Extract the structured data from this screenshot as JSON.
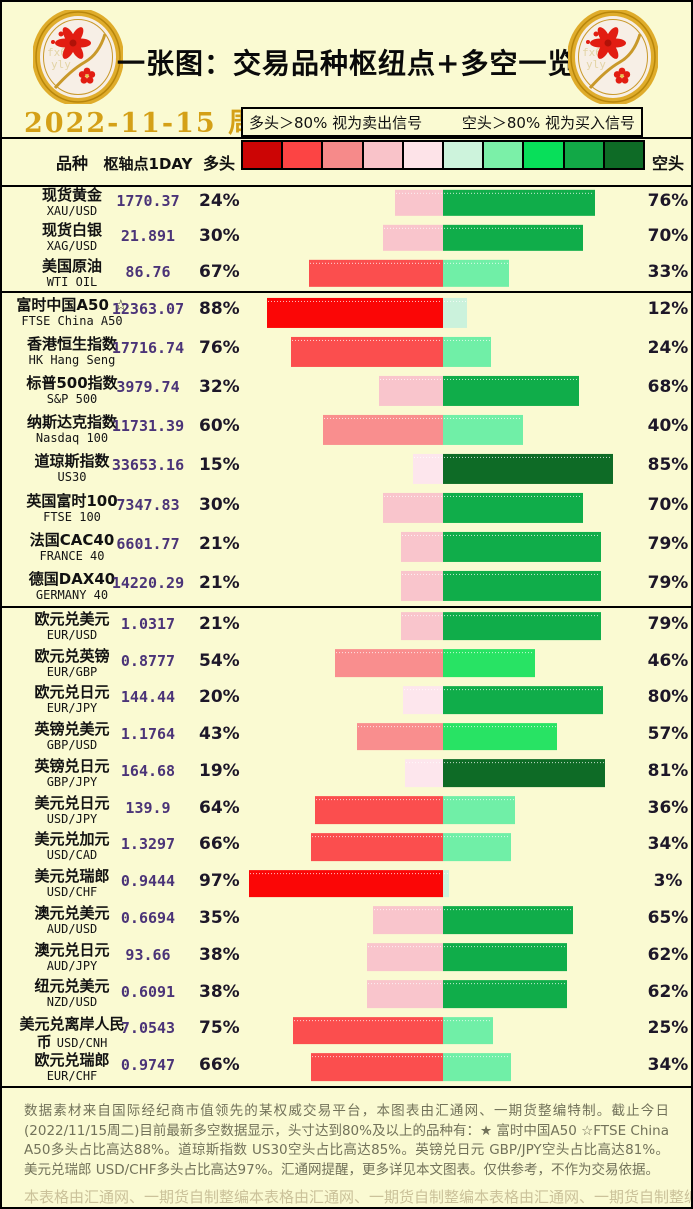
{
  "title": "一张图：交易品种枢纽点+多空一览",
  "date": "2022-11-15 周二",
  "legend": {
    "long_rule": "多头＞80% 视为卖出信号",
    "short_rule": "空头＞80% 视为买入信号"
  },
  "headers": {
    "instrument": "品种",
    "pivot": "枢轴点1DAY",
    "long": "多头",
    "short": "空头"
  },
  "color_scale": [
    "#CC0505",
    "#FC4444",
    "#F68A8A",
    "#F9C3C9",
    "#FDE3E8",
    "#CDF3DC",
    "#7BF0A8",
    "#08DF5A",
    "#12A847",
    "#0E6B26"
  ],
  "colors": {
    "background": "#FAFAD2",
    "border": "#000000",
    "pivot_text": "#4B3478",
    "date_text": "#D4A017",
    "footer_text": "#72725A",
    "watermark_text": "#CBC29A",
    "long_buckets": [
      "#FDE6ED",
      "#F9C5CC",
      "#F98E8E",
      "#FB4E4E",
      "#FB0606"
    ],
    "short_buckets": [
      "#CBF2DC",
      "#70EFA7",
      "#28E364",
      "#10AD4A",
      "#0E6B26"
    ]
  },
  "sections": [
    {
      "name": "commodities",
      "rows": [
        {
          "name": "现货黄金",
          "symbol": "XAU/USD",
          "pivot": "1770.37",
          "long": 24,
          "short": 76
        },
        {
          "name": "现货白银",
          "symbol": "XAG/USD",
          "pivot": "21.891",
          "long": 30,
          "short": 70
        },
        {
          "name": "美国原油",
          "symbol": "WTI OIL",
          "pivot": "86.76",
          "long": 67,
          "short": 33
        }
      ]
    },
    {
      "name": "indices",
      "rows": [
        {
          "name": "富时中国A50 ☆",
          "symbol": "FTSE China A50",
          "pivot": "12363.07",
          "long": 88,
          "short": 12
        },
        {
          "name": "香港恒生指数",
          "symbol": "HK Hang Seng",
          "pivot": "17716.74",
          "long": 76,
          "short": 24
        },
        {
          "name": "标普500指数",
          "symbol": "S&P 500",
          "pivot": "3979.74",
          "long": 32,
          "short": 68
        },
        {
          "name": "纳斯达克指数",
          "symbol": "Nasdaq 100",
          "pivot": "11731.39",
          "long": 60,
          "short": 40
        },
        {
          "name": "道琼斯指数",
          "symbol": "US30",
          "pivot": "33653.16",
          "long": 15,
          "short": 85
        },
        {
          "name": "英国富时100",
          "symbol": "FTSE 100",
          "pivot": "7347.83",
          "long": 30,
          "short": 70
        },
        {
          "name": "法国CAC40",
          "symbol": "FRANCE 40",
          "pivot": "6601.77",
          "long": 21,
          "short": 79
        },
        {
          "name": "德国DAX40",
          "symbol": "GERMANY 40",
          "pivot": "14220.29",
          "long": 21,
          "short": 79
        }
      ]
    },
    {
      "name": "forex",
      "rows": [
        {
          "name": "欧元兑美元",
          "symbol": "EUR/USD",
          "pivot": "1.0317",
          "long": 21,
          "short": 79
        },
        {
          "name": "欧元兑英镑",
          "symbol": "EUR/GBP",
          "pivot": "0.8777",
          "long": 54,
          "short": 46
        },
        {
          "name": "欧元兑日元",
          "symbol": "EUR/JPY",
          "pivot": "144.44",
          "long": 20,
          "short": 80
        },
        {
          "name": "英镑兑美元",
          "symbol": "GBP/USD",
          "pivot": "1.1764",
          "long": 43,
          "short": 57
        },
        {
          "name": "英镑兑日元",
          "symbol": "GBP/JPY",
          "pivot": "164.68",
          "long": 19,
          "short": 81
        },
        {
          "name": "美元兑日元",
          "symbol": "USD/JPY",
          "pivot": "139.9",
          "long": 64,
          "short": 36
        },
        {
          "name": "美元兑加元",
          "symbol": "USD/CAD",
          "pivot": "1.3297",
          "long": 66,
          "short": 34
        },
        {
          "name": "美元兑瑞郎",
          "symbol": "USD/CHF",
          "pivot": "0.9444",
          "long": 97,
          "short": 3
        },
        {
          "name": "澳元兑美元",
          "symbol": "AUD/USD",
          "pivot": "0.6694",
          "long": 35,
          "short": 65
        },
        {
          "name": "澳元兑日元",
          "symbol": "AUD/JPY",
          "pivot": "93.66",
          "long": 38,
          "short": 62
        },
        {
          "name": "纽元兑美元",
          "symbol": "NZD/USD",
          "pivot": "0.6091",
          "long": 38,
          "short": 62
        },
        {
          "name": "美元兑离岸人民币",
          "symbol": "USD/CNH",
          "pivot": "7.0543",
          "long": 75,
          "short": 25
        },
        {
          "name": "欧元兑瑞郎",
          "symbol": "EUR/CHF",
          "pivot": "0.9747",
          "long": 66,
          "short": 34
        }
      ]
    }
  ],
  "footer": {
    "note": "数据素材来自国际经纪商市值领先的某权威交易平台，本图表由汇通网、一期货整编特制。截止今日(2022/11/15周二)目前最新多空数据显示，头寸达到80%及以上的品种有：★ 富时中国A50 ☆FTSE China A50多头占比高达88%。道琼斯指数 US30空头占比高达85%。英镑兑日元 GBP/JPY空头占比高达81%。美元兑瑞郎 USD/CHF多头占比高达97%。汇通网提醒，更多详见本文图表。仅供参考，不作为交易依据。",
    "watermark": "本表格由汇通网、一期货自制整编"
  },
  "chart_data": {
    "type": "bar",
    "orientation": "horizontal-diverging",
    "title": "一张图：交易品种枢纽点+多空一览",
    "date": "2022-11-15 周二",
    "categories": [
      "XAU/USD",
      "XAG/USD",
      "WTI OIL",
      "FTSE China A50",
      "HK Hang Seng",
      "S&P 500",
      "Nasdaq 100",
      "US30",
      "FTSE 100",
      "FRANCE 40",
      "GERMANY 40",
      "EUR/USD",
      "EUR/GBP",
      "EUR/JPY",
      "GBP/USD",
      "GBP/JPY",
      "USD/JPY",
      "USD/CAD",
      "USD/CHF",
      "AUD/USD",
      "AUD/JPY",
      "NZD/USD",
      "USD/CNH",
      "EUR/CHF"
    ],
    "series": [
      {
        "name": "多头",
        "values": [
          24,
          30,
          67,
          88,
          76,
          32,
          60,
          15,
          30,
          21,
          21,
          21,
          54,
          20,
          43,
          19,
          64,
          66,
          97,
          35,
          38,
          38,
          75,
          66
        ]
      },
      {
        "name": "空头",
        "values": [
          76,
          70,
          33,
          12,
          24,
          68,
          40,
          85,
          70,
          79,
          79,
          79,
          46,
          80,
          57,
          81,
          36,
          34,
          3,
          65,
          62,
          62,
          25,
          34
        ]
      }
    ],
    "pivot_1day": [
      1770.37,
      21.891,
      86.76,
      12363.07,
      17716.74,
      3979.74,
      11731.39,
      33653.16,
      7347.83,
      6601.77,
      14220.29,
      1.0317,
      0.8777,
      144.44,
      1.1764,
      164.68,
      139.9,
      1.3297,
      0.9444,
      0.6694,
      93.66,
      0.6091,
      7.0543,
      0.9747
    ],
    "xlim": [
      -100,
      100
    ],
    "legend_position": "top",
    "grid": false
  }
}
